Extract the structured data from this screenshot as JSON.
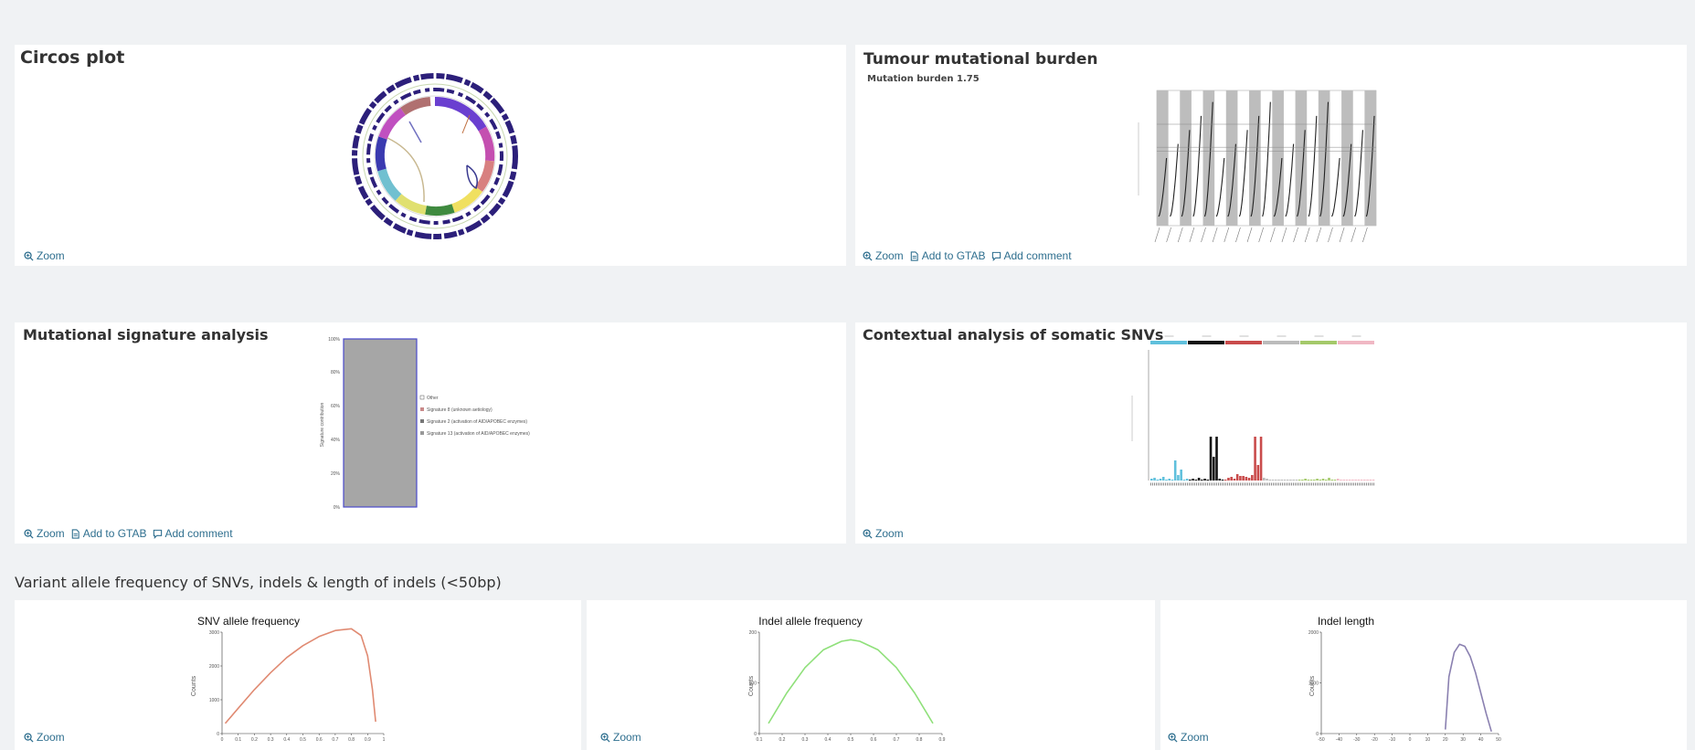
{
  "cards": {
    "circos": {
      "title": "Circos plot",
      "actions": [
        "Zoom"
      ]
    },
    "tmb": {
      "title": "Tumour mutational burden",
      "subtitle": "Mutation burden 1.75",
      "actions": [
        "Zoom",
        "Add to GTAB",
        "Add comment"
      ]
    },
    "signature": {
      "title": "Mutational signature analysis",
      "actions": [
        "Zoom",
        "Add to GTAB",
        "Add comment"
      ]
    },
    "contextual": {
      "title": "Contextual analysis of somatic SNVs",
      "actions": [
        "Zoom"
      ]
    }
  },
  "section": {
    "title": "Variant allele frequency of SNVs, indels & length of indels (<50bp)"
  },
  "plots": {
    "snv": {
      "title": "SNV allele frequency",
      "ylabel": "Counts",
      "action": "Zoom",
      "color": "#e08a72"
    },
    "indel": {
      "title": "Indel allele frequency",
      "ylabel": "Counts",
      "action": "Zoom",
      "color": "#8fe07a"
    },
    "length": {
      "title": "Indel length",
      "ylabel": "Counts",
      "action": "Zoom",
      "color": "#8a80b0"
    }
  },
  "signature_chart": {
    "yticks": [
      "100%",
      "80%",
      "60%",
      "40%",
      "20%",
      "0%"
    ],
    "ylabel": "Signature contribution",
    "legend": [
      {
        "label": "Other",
        "color": "#ffffff"
      },
      {
        "label": "Signature 8 (unknown aetiology)",
        "color": "#c98a8a"
      },
      {
        "label": "Signature 2 (activation of AID/APOBEC enzymes)",
        "color": "#777777"
      },
      {
        "label": "Signature 13 (activation of AID/APOBEC enzymes)",
        "color": "#999999"
      }
    ]
  },
  "chart_data": [
    {
      "type": "line",
      "title": "SNV allele frequency",
      "ylabel": "Counts",
      "yticks": [
        "3000",
        "2000",
        "1000",
        "0"
      ],
      "xticks": [
        "0",
        "0.1",
        "0.2",
        "0.3",
        "0.4",
        "0.5",
        "0.6",
        "0.7",
        "0.8",
        "0.9",
        "1"
      ],
      "x": [
        0.02,
        0.1,
        0.2,
        0.3,
        0.4,
        0.5,
        0.6,
        0.7,
        0.8,
        0.86,
        0.9,
        0.93,
        0.95
      ],
      "y": [
        300,
        750,
        1300,
        1800,
        2250,
        2600,
        2870,
        3050,
        3100,
        2900,
        2300,
        1300,
        350
      ],
      "ylim": [
        0,
        3000
      ]
    },
    {
      "type": "line",
      "title": "Indel allele frequency",
      "ylabel": "Counts",
      "yticks": [
        "200",
        "100",
        "0"
      ],
      "xticks": [
        "0.1",
        "0.2",
        "0.3",
        "0.4",
        "0.5",
        "0.6",
        "0.7",
        "0.8",
        "0.9"
      ],
      "x": [
        0.05,
        0.15,
        0.25,
        0.35,
        0.45,
        0.5,
        0.55,
        0.65,
        0.75,
        0.85,
        0.95
      ],
      "y": [
        20,
        80,
        130,
        165,
        182,
        185,
        182,
        165,
        130,
        80,
        20
      ],
      "ylim": [
        0,
        200
      ]
    },
    {
      "type": "line",
      "title": "Indel length",
      "ylabel": "Counts",
      "yticks": [
        "2000",
        "1000",
        "0"
      ],
      "xticks": [
        "-50",
        "-40",
        "-30",
        "-20",
        "-10",
        "0",
        "10",
        "20",
        "30",
        "40",
        "50"
      ],
      "x": [
        20,
        22,
        25,
        28,
        31,
        34,
        37,
        40,
        43,
        46
      ],
      "y": [
        100,
        1400,
        2000,
        2200,
        2150,
        1900,
        1500,
        1000,
        500,
        50
      ],
      "ylim": [
        0,
        2500
      ]
    }
  ]
}
